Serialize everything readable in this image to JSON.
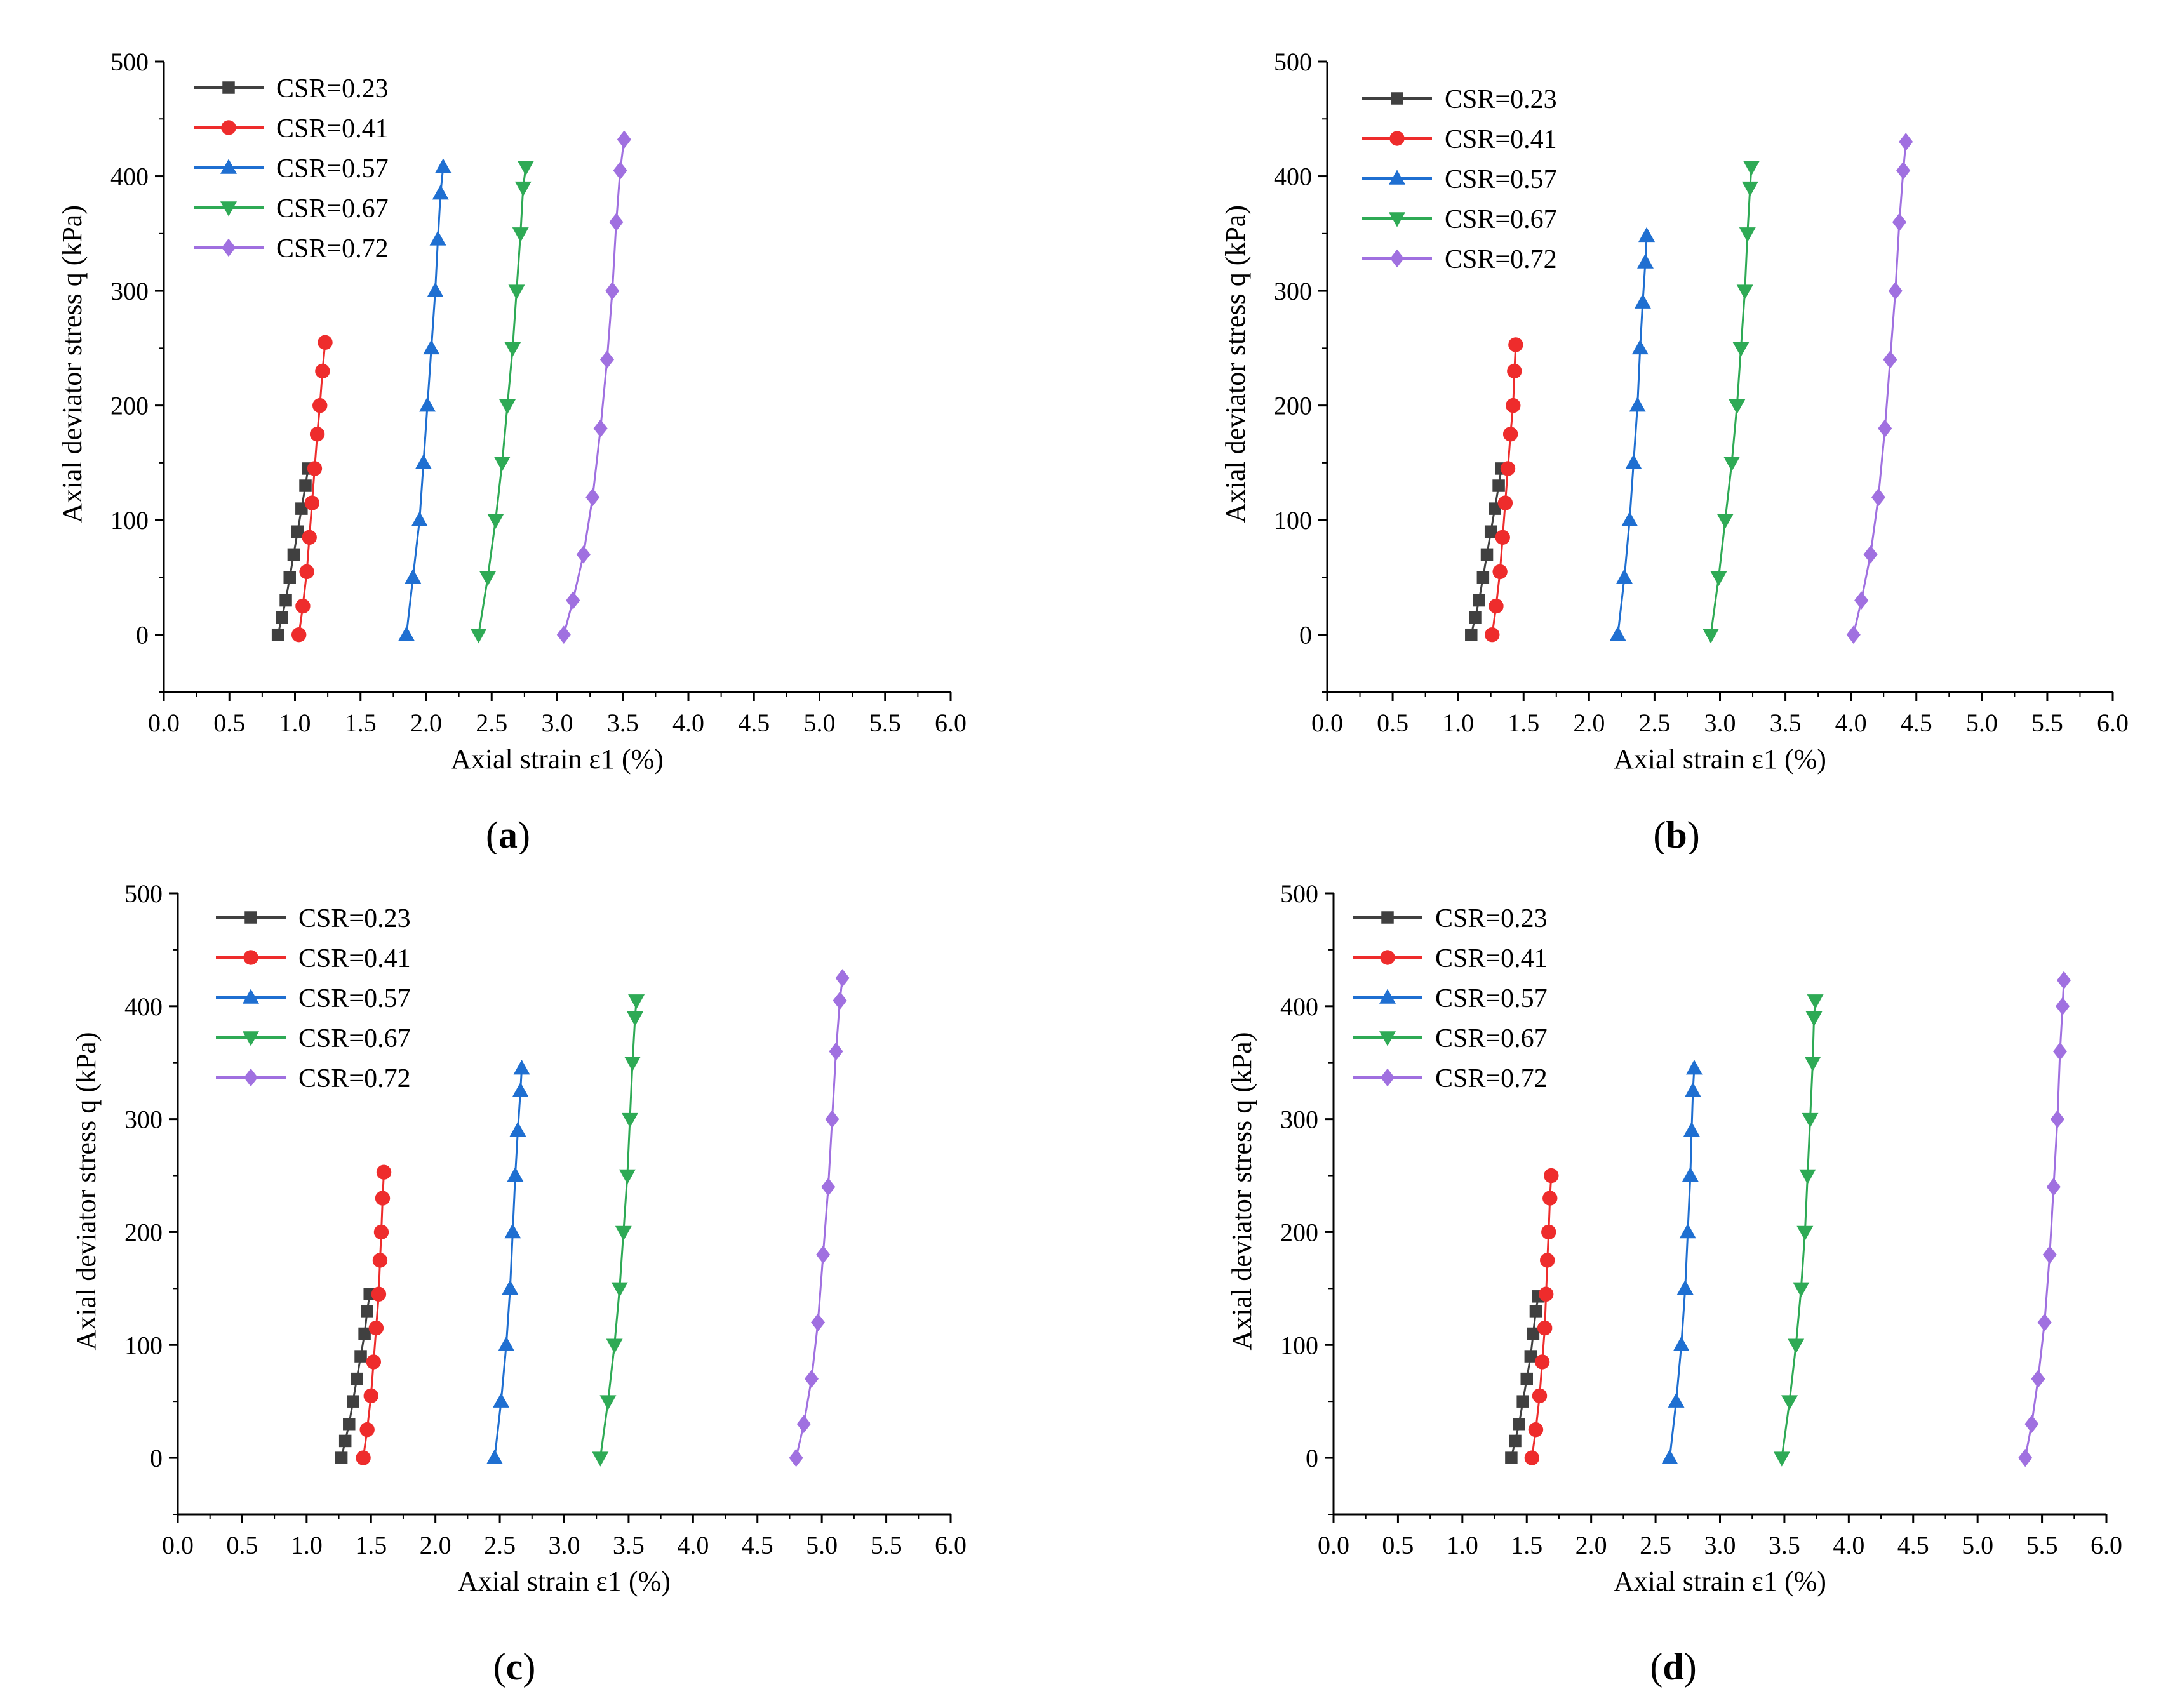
{
  "chart_data": [
    {
      "panel_label": "a",
      "type": "line",
      "xlabel": "Axial strain ε1 (%)",
      "ylabel": "Axial deviator stress q (kPa)",
      "xlim": [
        0.0,
        6.0
      ],
      "ylim": [
        -50,
        500
      ],
      "xticks": [
        "0.0",
        "0.5",
        "1.0",
        "1.5",
        "2.0",
        "2.5",
        "3.0",
        "3.5",
        "4.0",
        "4.5",
        "5.0",
        "5.5",
        "6.0"
      ],
      "yticks": [
        "0",
        "100",
        "200",
        "300",
        "400",
        "500"
      ],
      "legend_position": "top-left",
      "series": [
        {
          "name": "CSR=0.23",
          "color": "#404040",
          "marker": "square",
          "x": [
            0.87,
            0.9,
            0.93,
            0.96,
            0.99,
            1.02,
            1.05,
            1.08,
            1.1
          ],
          "y": [
            0,
            15,
            30,
            50,
            70,
            90,
            110,
            130,
            145
          ]
        },
        {
          "name": "CSR=0.41",
          "color": "#ee2c2c",
          "marker": "circle",
          "x": [
            1.03,
            1.06,
            1.09,
            1.11,
            1.13,
            1.15,
            1.17,
            1.19,
            1.21,
            1.23
          ],
          "y": [
            0,
            25,
            55,
            85,
            115,
            145,
            175,
            200,
            230,
            255
          ]
        },
        {
          "name": "CSR=0.57",
          "color": "#1f6fd1",
          "marker": "triangle-up",
          "x": [
            1.85,
            1.9,
            1.95,
            1.98,
            2.01,
            2.04,
            2.07,
            2.09,
            2.11,
            2.13
          ],
          "y": [
            0,
            50,
            100,
            150,
            200,
            250,
            300,
            345,
            385,
            408
          ]
        },
        {
          "name": "CSR=0.67",
          "color": "#2eaa55",
          "marker": "triangle-down",
          "x": [
            2.4,
            2.47,
            2.53,
            2.58,
            2.62,
            2.66,
            2.69,
            2.72,
            2.74,
            2.76
          ],
          "y": [
            0,
            50,
            100,
            150,
            200,
            250,
            300,
            350,
            390,
            408
          ]
        },
        {
          "name": "CSR=0.72",
          "color": "#a070e0",
          "marker": "diamond",
          "x": [
            3.05,
            3.12,
            3.2,
            3.27,
            3.33,
            3.38,
            3.42,
            3.45,
            3.48,
            3.51
          ],
          "y": [
            0,
            30,
            70,
            120,
            180,
            240,
            300,
            360,
            405,
            432
          ]
        }
      ]
    },
    {
      "panel_label": "b",
      "type": "line",
      "xlabel": "Axial strain ε1 (%)",
      "ylabel": "Axial deviator stress q (kPa)",
      "xlim": [
        0.0,
        6.0
      ],
      "ylim": [
        -50,
        500
      ],
      "xticks": [
        "0.0",
        "0.5",
        "1.0",
        "1.5",
        "2.0",
        "2.5",
        "3.0",
        "3.5",
        "4.0",
        "4.5",
        "5.0",
        "5.5",
        "6.0"
      ],
      "yticks": [
        "0",
        "100",
        "200",
        "300",
        "400",
        "500"
      ],
      "legend_position": "top-left",
      "series": [
        {
          "name": "CSR=0.23",
          "color": "#404040",
          "marker": "square",
          "x": [
            1.1,
            1.13,
            1.16,
            1.19,
            1.22,
            1.25,
            1.28,
            1.31,
            1.33
          ],
          "y": [
            0,
            15,
            30,
            50,
            70,
            90,
            110,
            130,
            145
          ]
        },
        {
          "name": "CSR=0.41",
          "color": "#ee2c2c",
          "marker": "circle",
          "x": [
            1.26,
            1.29,
            1.32,
            1.34,
            1.36,
            1.38,
            1.4,
            1.42,
            1.43,
            1.44
          ],
          "y": [
            0,
            25,
            55,
            85,
            115,
            145,
            175,
            200,
            230,
            253
          ]
        },
        {
          "name": "CSR=0.57",
          "color": "#1f6fd1",
          "marker": "triangle-up",
          "x": [
            2.22,
            2.27,
            2.31,
            2.34,
            2.37,
            2.39,
            2.41,
            2.43,
            2.44
          ],
          "y": [
            0,
            50,
            100,
            150,
            200,
            250,
            290,
            325,
            348
          ]
        },
        {
          "name": "CSR=0.67",
          "color": "#2eaa55",
          "marker": "triangle-down",
          "x": [
            2.93,
            2.99,
            3.04,
            3.09,
            3.13,
            3.16,
            3.19,
            3.21,
            3.23,
            3.24
          ],
          "y": [
            0,
            50,
            100,
            150,
            200,
            250,
            300,
            350,
            390,
            408
          ]
        },
        {
          "name": "CSR=0.72",
          "color": "#a070e0",
          "marker": "diamond",
          "x": [
            4.02,
            4.08,
            4.15,
            4.21,
            4.26,
            4.3,
            4.34,
            4.37,
            4.4,
            4.42
          ],
          "y": [
            0,
            30,
            70,
            120,
            180,
            240,
            300,
            360,
            405,
            430
          ]
        }
      ]
    },
    {
      "panel_label": "c",
      "type": "line",
      "xlabel": "Axial strain ε1 (%)",
      "ylabel": "Axial deviator stress q (kPa)",
      "xlim": [
        0.0,
        6.0
      ],
      "ylim": [
        -50,
        500
      ],
      "xticks": [
        "0.0",
        "0.5",
        "1.0",
        "1.5",
        "2.0",
        "2.5",
        "3.0",
        "3.5",
        "4.0",
        "4.5",
        "5.0",
        "5.5",
        "6.0"
      ],
      "yticks": [
        "0",
        "100",
        "200",
        "300",
        "400",
        "500"
      ],
      "legend_position": "top-left",
      "series": [
        {
          "name": "CSR=0.23",
          "color": "#404040",
          "marker": "square",
          "x": [
            1.27,
            1.3,
            1.33,
            1.36,
            1.39,
            1.42,
            1.45,
            1.47,
            1.49
          ],
          "y": [
            0,
            15,
            30,
            50,
            70,
            90,
            110,
            130,
            145
          ]
        },
        {
          "name": "CSR=0.41",
          "color": "#ee2c2c",
          "marker": "circle",
          "x": [
            1.44,
            1.47,
            1.5,
            1.52,
            1.54,
            1.56,
            1.57,
            1.58,
            1.59,
            1.6
          ],
          "y": [
            0,
            25,
            55,
            85,
            115,
            145,
            175,
            200,
            230,
            253
          ]
        },
        {
          "name": "CSR=0.57",
          "color": "#1f6fd1",
          "marker": "triangle-up",
          "x": [
            2.46,
            2.51,
            2.55,
            2.58,
            2.6,
            2.62,
            2.64,
            2.66,
            2.67
          ],
          "y": [
            0,
            50,
            100,
            150,
            200,
            250,
            290,
            325,
            345
          ]
        },
        {
          "name": "CSR=0.67",
          "color": "#2eaa55",
          "marker": "triangle-down",
          "x": [
            3.28,
            3.34,
            3.39,
            3.43,
            3.46,
            3.49,
            3.51,
            3.53,
            3.55,
            3.56
          ],
          "y": [
            0,
            50,
            100,
            150,
            200,
            250,
            300,
            350,
            390,
            405
          ]
        },
        {
          "name": "CSR=0.72",
          "color": "#a070e0",
          "marker": "diamond",
          "x": [
            4.8,
            4.86,
            4.92,
            4.97,
            5.01,
            5.05,
            5.08,
            5.11,
            5.14,
            5.16
          ],
          "y": [
            0,
            30,
            70,
            120,
            180,
            240,
            300,
            360,
            405,
            425
          ]
        }
      ]
    },
    {
      "panel_label": "d",
      "type": "line",
      "xlabel": "Axial strain ε1 (%)",
      "ylabel": "Axial deviator stress q (kPa)",
      "xlim": [
        0.0,
        6.0
      ],
      "ylim": [
        -50,
        500
      ],
      "xticks": [
        "0.0",
        "0.5",
        "1.0",
        "1.5",
        "2.0",
        "2.5",
        "3.0",
        "3.5",
        "4.0",
        "4.5",
        "5.0",
        "5.5",
        "6.0"
      ],
      "yticks": [
        "0",
        "100",
        "200",
        "300",
        "400",
        "500"
      ],
      "legend_position": "top-left",
      "series": [
        {
          "name": "CSR=0.23",
          "color": "#404040",
          "marker": "square",
          "x": [
            1.38,
            1.41,
            1.44,
            1.47,
            1.5,
            1.53,
            1.55,
            1.57,
            1.59
          ],
          "y": [
            0,
            15,
            30,
            50,
            70,
            90,
            110,
            130,
            143
          ]
        },
        {
          "name": "CSR=0.41",
          "color": "#ee2c2c",
          "marker": "circle",
          "x": [
            1.54,
            1.57,
            1.6,
            1.62,
            1.64,
            1.65,
            1.66,
            1.67,
            1.68,
            1.69
          ],
          "y": [
            0,
            25,
            55,
            85,
            115,
            145,
            175,
            200,
            230,
            250
          ]
        },
        {
          "name": "CSR=0.57",
          "color": "#1f6fd1",
          "marker": "triangle-up",
          "x": [
            2.61,
            2.66,
            2.7,
            2.73,
            2.75,
            2.77,
            2.78,
            2.79,
            2.8
          ],
          "y": [
            0,
            50,
            100,
            150,
            200,
            250,
            290,
            325,
            345
          ]
        },
        {
          "name": "CSR=0.67",
          "color": "#2eaa55",
          "marker": "triangle-down",
          "x": [
            3.48,
            3.54,
            3.59,
            3.63,
            3.66,
            3.68,
            3.7,
            3.72,
            3.73,
            3.74
          ],
          "y": [
            0,
            50,
            100,
            150,
            200,
            250,
            300,
            350,
            390,
            405
          ]
        },
        {
          "name": "CSR=0.72",
          "color": "#a070e0",
          "marker": "diamond",
          "x": [
            5.37,
            5.42,
            5.47,
            5.52,
            5.56,
            5.59,
            5.62,
            5.64,
            5.66,
            5.67
          ],
          "y": [
            0,
            30,
            70,
            120,
            180,
            240,
            300,
            360,
            400,
            423
          ]
        }
      ]
    }
  ]
}
